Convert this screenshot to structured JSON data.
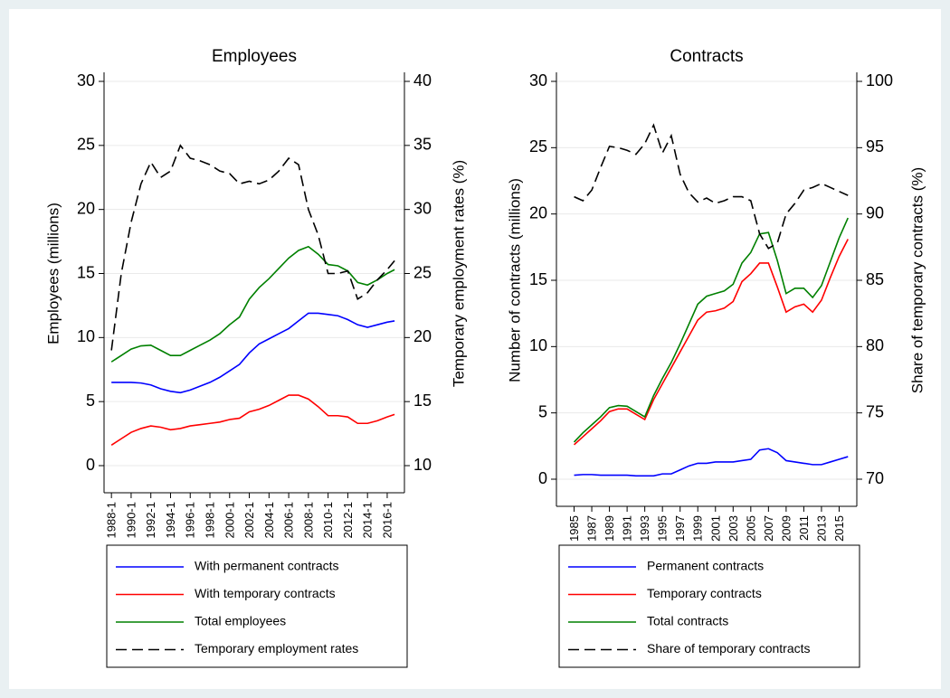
{
  "chart_data": [
    {
      "type": "line",
      "title": "Employees",
      "ylabel": "Employees (millions)",
      "y2label": "Temporary employment rates (%)",
      "x": [
        1988,
        1989,
        1990,
        1991,
        1992,
        1993,
        1994,
        1995,
        1996,
        1997,
        1998,
        1999,
        2000,
        2001,
        2002,
        2003,
        2004,
        2005,
        2006,
        2007,
        2008,
        2009,
        2010,
        2011,
        2012,
        2013,
        2014,
        2015,
        2016,
        2016.75
      ],
      "xlim": [
        1987.25,
        2017.75
      ],
      "xticks": [
        {
          "value": 1988,
          "label": "1988-1"
        },
        {
          "value": 1990,
          "label": "1990-1"
        },
        {
          "value": 1992,
          "label": "1992-1"
        },
        {
          "value": 1994,
          "label": "1994-1"
        },
        {
          "value": 1996,
          "label": "1996-1"
        },
        {
          "value": 1998,
          "label": "1998-1"
        },
        {
          "value": 2000,
          "label": "2000-1"
        },
        {
          "value": 2002,
          "label": "2002-1"
        },
        {
          "value": 2004,
          "label": "2004-1"
        },
        {
          "value": 2006,
          "label": "2006-1"
        },
        {
          "value": 2008,
          "label": "2008-1"
        },
        {
          "value": 2010,
          "label": "2010-1"
        },
        {
          "value": 2012,
          "label": "2012-1"
        },
        {
          "value": 2014,
          "label": "2014-1"
        },
        {
          "value": 2016,
          "label": "2016-1"
        }
      ],
      "ylim": [
        0,
        30
      ],
      "yticks": [
        0,
        5,
        10,
        15,
        20,
        25,
        30
      ],
      "y2lim": [
        10,
        40
      ],
      "y2ticks": [
        10,
        15,
        20,
        25,
        30,
        35,
        40
      ],
      "grid": true,
      "legend": "bottom",
      "series": [
        {
          "name": "With permanent contracts",
          "color": "#0000ff",
          "style": "solid",
          "values": [
            6.5,
            6.5,
            6.5,
            6.45,
            6.3,
            6.0,
            5.8,
            5.7,
            5.9,
            6.2,
            6.5,
            6.9,
            7.4,
            7.9,
            8.8,
            9.5,
            9.9,
            10.3,
            10.7,
            11.3,
            11.9,
            11.9,
            11.8,
            11.7,
            11.4,
            11.0,
            10.8,
            11.0,
            11.2,
            11.3
          ]
        },
        {
          "name": "With temporary contracts",
          "color": "#ff0000",
          "style": "solid",
          "values": [
            1.6,
            2.1,
            2.6,
            2.9,
            3.1,
            3.0,
            2.8,
            2.9,
            3.1,
            3.2,
            3.3,
            3.4,
            3.6,
            3.7,
            4.2,
            4.4,
            4.7,
            5.1,
            5.5,
            5.5,
            5.2,
            4.6,
            3.9,
            3.9,
            3.8,
            3.3,
            3.3,
            3.5,
            3.8,
            4.0
          ]
        },
        {
          "name": "Total employees",
          "color": "#008000",
          "style": "solid",
          "values": [
            8.1,
            8.6,
            9.1,
            9.35,
            9.4,
            9.0,
            8.6,
            8.6,
            9.0,
            9.4,
            9.8,
            10.3,
            11.0,
            11.6,
            13.0,
            13.9,
            14.6,
            15.4,
            16.2,
            16.8,
            17.1,
            16.5,
            15.7,
            15.6,
            15.2,
            14.3,
            14.1,
            14.5,
            15.0,
            15.3
          ]
        },
        {
          "name": "Temporary employment rates",
          "color": "#000000",
          "style": "dashed",
          "axis": "y2",
          "values": [
            19,
            25,
            29,
            32,
            33.7,
            32.5,
            33,
            35,
            34,
            33.8,
            33.5,
            33,
            32.8,
            32,
            32.2,
            32,
            32.3,
            33,
            34,
            33.5,
            30,
            28,
            25,
            25,
            25.2,
            23,
            23.5,
            24.5,
            25.3,
            26
          ]
        }
      ]
    },
    {
      "type": "line",
      "title": "Contracts",
      "ylabel": "Number of contracts (millions)",
      "y2label": "Share of temporary contracts (%)",
      "x": [
        1985,
        1986,
        1987,
        1988,
        1989,
        1990,
        1991,
        1992,
        1993,
        1994,
        1995,
        1996,
        1997,
        1998,
        1999,
        2000,
        2001,
        2002,
        2003,
        2004,
        2005,
        2006,
        2007,
        2008,
        2009,
        2010,
        2011,
        2012,
        2013,
        2014,
        2015,
        2016
      ],
      "xlim": [
        1983,
        2017
      ],
      "xticks": [
        1985,
        1987,
        1989,
        1991,
        1993,
        1995,
        1997,
        1999,
        2001,
        2003,
        2005,
        2007,
        2009,
        2011,
        2013,
        2015
      ],
      "ylim": [
        0,
        30
      ],
      "yticks": [
        0,
        5,
        10,
        15,
        20,
        25,
        30
      ],
      "y2lim": [
        70,
        100
      ],
      "y2ticks": [
        70,
        75,
        80,
        85,
        90,
        95,
        100
      ],
      "grid": true,
      "legend": "bottom",
      "series": [
        {
          "name": "Permanent contracts",
          "color": "#0000ff",
          "style": "solid",
          "values": [
            0.3,
            0.35,
            0.35,
            0.3,
            0.3,
            0.3,
            0.3,
            0.25,
            0.25,
            0.25,
            0.4,
            0.4,
            0.7,
            1.0,
            1.2,
            1.2,
            1.3,
            1.3,
            1.3,
            1.4,
            1.5,
            2.2,
            2.3,
            2.0,
            1.4,
            1.3,
            1.2,
            1.1,
            1.1,
            1.3,
            1.5,
            1.7
          ]
        },
        {
          "name": "Temporary contracts",
          "color": "#ff0000",
          "style": "solid",
          "values": [
            2.6,
            3.2,
            3.8,
            4.4,
            5.1,
            5.3,
            5.3,
            4.9,
            4.5,
            6.0,
            7.2,
            8.4,
            9.6,
            10.8,
            12.0,
            12.6,
            12.7,
            12.9,
            13.4,
            14.9,
            15.5,
            16.3,
            16.3,
            14.5,
            12.6,
            13.0,
            13.2,
            12.6,
            13.5,
            15.2,
            16.8,
            18.1
          ]
        },
        {
          "name": "Total contracts",
          "color": "#008000",
          "style": "solid",
          "values": [
            2.8,
            3.5,
            4.1,
            4.7,
            5.4,
            5.55,
            5.5,
            5.1,
            4.7,
            6.3,
            7.6,
            8.8,
            10.2,
            11.7,
            13.2,
            13.8,
            14.0,
            14.2,
            14.7,
            16.3,
            17.1,
            18.5,
            18.6,
            16.5,
            14.0,
            14.4,
            14.4,
            13.7,
            14.6,
            16.4,
            18.2,
            19.7
          ]
        },
        {
          "name": "Share of temporary contracts",
          "color": "#000000",
          "style": "dashed",
          "axis": "y2",
          "values": [
            91.3,
            91.0,
            91.8,
            93.5,
            95.1,
            95.0,
            94.8,
            94.5,
            95.3,
            96.7,
            94.6,
            95.9,
            93.0,
            91.6,
            90.9,
            91.2,
            90.8,
            91.0,
            91.3,
            91.3,
            91.0,
            88.5,
            87.4,
            87.8,
            90.0,
            90.8,
            91.8,
            92.0,
            92.3,
            92.0,
            91.7,
            91.4
          ]
        }
      ]
    }
  ]
}
